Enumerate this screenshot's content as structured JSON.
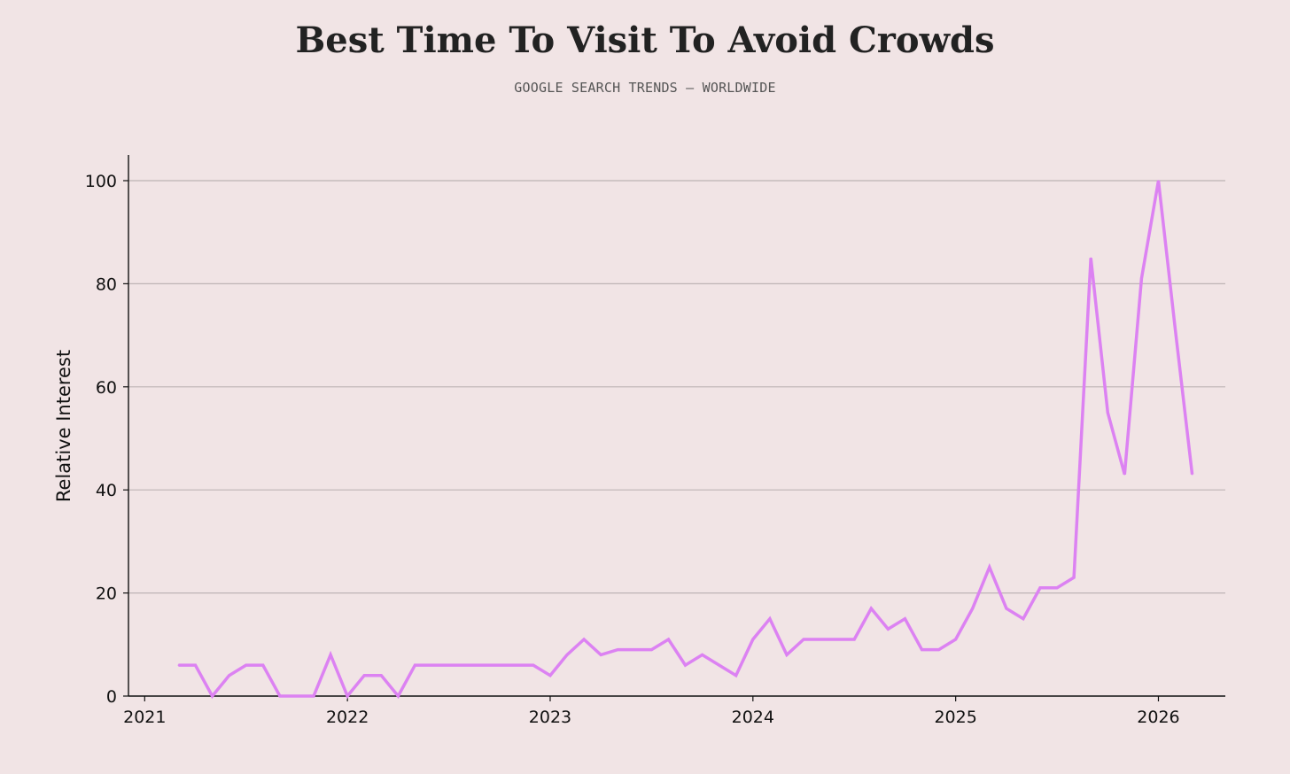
{
  "chart_data": {
    "type": "line",
    "title": "Best Time To Visit To Avoid Crowds",
    "subtitle": "GOOGLE SEARCH TRENDS — WORLDWIDE",
    "xlabel": "",
    "ylabel": "Relative Interest",
    "xlim": [
      2020.92,
      2026.33
    ],
    "ylim": [
      0,
      105
    ],
    "x_ticks": [
      2021,
      2022,
      2023,
      2024,
      2025,
      2026
    ],
    "y_ticks": [
      0,
      20,
      40,
      60,
      80,
      100
    ],
    "grid": "horizontal",
    "series": [
      {
        "name": "Relative Interest",
        "color": "#dc82f2",
        "start": [
          2021,
          3
        ],
        "values": [
          6,
          6,
          0,
          4,
          6,
          6,
          0,
          0,
          0,
          8,
          0,
          4,
          4,
          0,
          6,
          6,
          6,
          6,
          6,
          6,
          6,
          6,
          4,
          8,
          11,
          8,
          9,
          9,
          9,
          11,
          6,
          8,
          6,
          4,
          11,
          15,
          8,
          11,
          11,
          11,
          11,
          17,
          13,
          15,
          9,
          9,
          11,
          17,
          25,
          17,
          15,
          21,
          21,
          23,
          85,
          55,
          43,
          81,
          100,
          71,
          43
        ]
      }
    ]
  },
  "colors": {
    "background": "#f1e4e5",
    "grid": "#bdb3b5",
    "axis": "#111111",
    "line": "#dc82f2"
  }
}
